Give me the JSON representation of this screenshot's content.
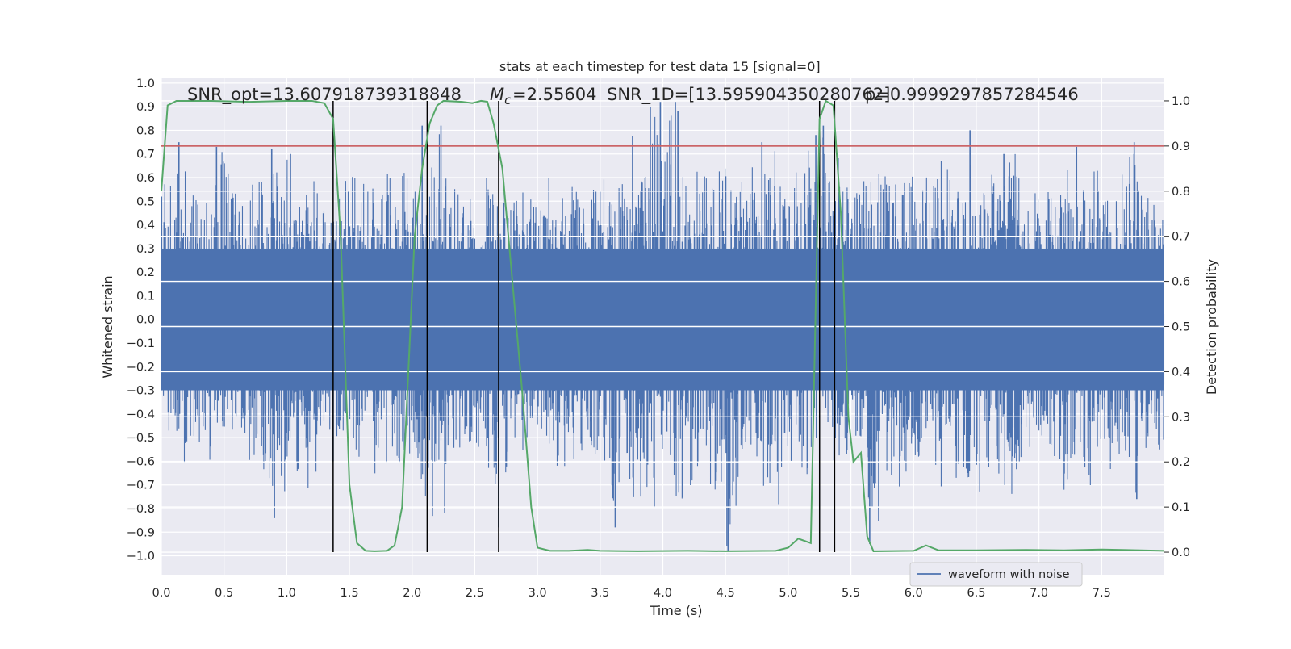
{
  "chart_data": {
    "type": "line",
    "title": "stats at each timestep for test data 15 [signal=0]",
    "xlabel": "Time (s)",
    "ylabel_left": "Whitened strain",
    "ylabel_right": "Detection probability",
    "xlim": [
      0.0,
      8.0
    ],
    "ylim_left": [
      -1.08,
      1.02
    ],
    "ylim_right": [
      -0.05,
      1.05
    ],
    "grid": true,
    "x_ticks": [
      "0.0",
      "0.5",
      "1.0",
      "1.5",
      "2.0",
      "2.5",
      "3.0",
      "3.5",
      "4.0",
      "4.5",
      "5.0",
      "5.5",
      "6.0",
      "6.5",
      "7.0",
      "7.5"
    ],
    "y_ticks_left": [
      "1.0",
      "0.9",
      "0.8",
      "0.7",
      "0.6",
      "0.5",
      "0.4",
      "0.3",
      "0.2",
      "0.1",
      "0.0",
      "−0.1",
      "−0.2",
      "−0.3",
      "−0.4",
      "−0.5",
      "−0.6",
      "−0.7",
      "−0.8",
      "−0.9",
      "−1.0"
    ],
    "y_ticks_right": [
      "1.0",
      "0.9",
      "0.8",
      "0.7",
      "0.6",
      "0.5",
      "0.4",
      "0.3",
      "0.2",
      "0.1",
      "0.0"
    ],
    "annotations": {
      "snr_opt": "SNR_opt=13.607918739318848",
      "mc_prefix": "=2.55604",
      "mc_suffix": "SNR_1D=[13.595904350280762]",
      "p_value": "p=0.9999297857284546"
    },
    "legend": {
      "label": "waveform with noise",
      "placement": "lower-right"
    },
    "threshold": 0.9,
    "detection_boundaries_s": [
      1.37,
      2.12,
      2.69,
      5.25,
      5.37
    ],
    "series": [
      {
        "name": "waveform with noise",
        "color": "#4c72b0",
        "envelope_points": [
          [
            0.0,
            0.62,
            -0.35
          ],
          [
            0.1,
            0.68,
            -0.55
          ],
          [
            0.2,
            0.62,
            -0.62
          ],
          [
            0.3,
            0.6,
            -0.55
          ],
          [
            0.4,
            0.6,
            -0.6
          ],
          [
            0.5,
            0.73,
            -0.6
          ],
          [
            0.6,
            0.6,
            -0.55
          ],
          [
            0.7,
            0.55,
            -0.78
          ],
          [
            0.8,
            0.65,
            -0.6
          ],
          [
            0.9,
            0.7,
            -0.85
          ],
          [
            1.0,
            0.68,
            -0.75
          ],
          [
            1.1,
            0.55,
            -0.62
          ],
          [
            1.2,
            0.65,
            -0.75
          ],
          [
            1.3,
            0.52,
            -0.6
          ],
          [
            1.4,
            0.6,
            -0.6
          ],
          [
            1.5,
            0.58,
            -0.65
          ],
          [
            1.6,
            0.7,
            -0.72
          ],
          [
            1.7,
            0.6,
            -0.8
          ],
          [
            1.8,
            0.65,
            -0.6
          ],
          [
            1.9,
            0.68,
            -0.72
          ],
          [
            2.0,
            0.55,
            -0.55
          ],
          [
            2.1,
            0.82,
            -0.85
          ],
          [
            2.2,
            0.82,
            -0.82
          ],
          [
            2.3,
            0.6,
            -0.75
          ],
          [
            2.4,
            0.62,
            -0.62
          ],
          [
            2.5,
            0.55,
            -0.6
          ],
          [
            2.6,
            0.6,
            -0.6
          ],
          [
            2.7,
            0.58,
            -0.88
          ],
          [
            2.8,
            0.55,
            -0.6
          ],
          [
            2.9,
            0.6,
            -0.65
          ],
          [
            3.0,
            0.6,
            -0.55
          ],
          [
            3.1,
            0.65,
            -0.6
          ],
          [
            3.2,
            0.6,
            -0.65
          ],
          [
            3.3,
            0.55,
            -0.62
          ],
          [
            3.4,
            0.55,
            -0.6
          ],
          [
            3.5,
            0.68,
            -0.65
          ],
          [
            3.6,
            0.6,
            -0.88
          ],
          [
            3.7,
            0.68,
            -0.72
          ],
          [
            3.8,
            0.85,
            -0.8
          ],
          [
            3.9,
            0.82,
            -0.85
          ],
          [
            4.0,
            0.92,
            -0.7
          ],
          [
            4.1,
            0.9,
            -0.8
          ],
          [
            4.2,
            0.65,
            -0.72
          ],
          [
            4.3,
            0.62,
            -0.7
          ],
          [
            4.4,
            0.68,
            -0.75
          ],
          [
            4.5,
            0.72,
            -0.98
          ],
          [
            4.6,
            0.6,
            -0.75
          ],
          [
            4.7,
            0.65,
            -0.72
          ],
          [
            4.8,
            0.6,
            -0.7
          ],
          [
            4.9,
            0.72,
            -0.8
          ],
          [
            5.0,
            0.6,
            -0.72
          ],
          [
            5.1,
            0.65,
            -0.75
          ],
          [
            5.2,
            0.78,
            -0.6
          ],
          [
            5.3,
            0.82,
            -0.65
          ],
          [
            5.4,
            0.72,
            -0.65
          ],
          [
            5.5,
            0.6,
            -0.6
          ],
          [
            5.6,
            0.62,
            -0.65
          ],
          [
            5.7,
            0.62,
            -0.95
          ],
          [
            5.8,
            0.6,
            -0.75
          ],
          [
            5.9,
            0.72,
            -0.7
          ],
          [
            6.0,
            0.6,
            -0.72
          ],
          [
            6.1,
            0.65,
            -0.7
          ],
          [
            6.2,
            0.72,
            -0.72
          ],
          [
            6.3,
            0.6,
            -0.65
          ],
          [
            6.4,
            0.62,
            -0.7
          ],
          [
            6.5,
            0.68,
            -0.72
          ],
          [
            6.6,
            0.6,
            -0.75
          ],
          [
            6.7,
            0.65,
            -0.7
          ],
          [
            6.8,
            0.72,
            -0.75
          ],
          [
            6.9,
            0.65,
            -0.75
          ],
          [
            7.0,
            0.68,
            -0.65
          ],
          [
            7.1,
            0.62,
            -0.72
          ],
          [
            7.2,
            0.6,
            -0.72
          ],
          [
            7.3,
            0.72,
            -0.7
          ],
          [
            7.4,
            0.68,
            -0.78
          ],
          [
            7.5,
            0.65,
            -0.65
          ],
          [
            7.6,
            0.6,
            -0.7
          ],
          [
            7.7,
            0.68,
            -0.62
          ],
          [
            7.8,
            0.75,
            -0.78
          ],
          [
            7.9,
            0.6,
            -0.55
          ],
          [
            8.0,
            0.6,
            -0.55
          ]
        ],
        "spikes": [
          [
            0.14,
            0.75
          ],
          [
            0.44,
            0.73
          ],
          [
            0.88,
            0.72
          ],
          [
            1.03,
            0.7
          ],
          [
            1.37,
            -0.6
          ],
          [
            2.08,
            0.82
          ],
          [
            2.23,
            0.82
          ],
          [
            2.26,
            -0.82
          ],
          [
            2.69,
            -0.88
          ],
          [
            3.62,
            -0.88
          ],
          [
            3.9,
            0.9
          ],
          [
            3.98,
            0.92
          ],
          [
            4.1,
            0.92
          ],
          [
            4.12,
            0.88
          ],
          [
            4.52,
            -0.98
          ],
          [
            4.79,
            0.75
          ],
          [
            5.22,
            0.78
          ],
          [
            5.28,
            0.82
          ],
          [
            5.65,
            -0.95
          ],
          [
            6.45,
            0.8
          ],
          [
            6.72,
            0.7
          ],
          [
            7.3,
            0.73
          ],
          [
            7.76,
            0.75
          ],
          [
            7.78,
            -0.76
          ]
        ]
      },
      {
        "name": "detection probability",
        "color": "#55a868",
        "axis": "right",
        "points": [
          [
            0.0,
            0.8
          ],
          [
            0.05,
            0.99
          ],
          [
            0.12,
            1.0
          ],
          [
            0.4,
            1.0
          ],
          [
            0.7,
            0.998
          ],
          [
            1.0,
            1.0
          ],
          [
            1.2,
            1.0
          ],
          [
            1.3,
            0.995
          ],
          [
            1.37,
            0.96
          ],
          [
            1.43,
            0.7
          ],
          [
            1.5,
            0.15
          ],
          [
            1.56,
            0.02
          ],
          [
            1.63,
            0.003
          ],
          [
            1.7,
            0.002
          ],
          [
            1.8,
            0.003
          ],
          [
            1.86,
            0.015
          ],
          [
            1.92,
            0.1
          ],
          [
            1.97,
            0.4
          ],
          [
            2.02,
            0.7
          ],
          [
            2.08,
            0.85
          ],
          [
            2.14,
            0.95
          ],
          [
            2.2,
            0.99
          ],
          [
            2.25,
            1.0
          ],
          [
            2.4,
            0.998
          ],
          [
            2.48,
            0.995
          ],
          [
            2.55,
            1.0
          ],
          [
            2.6,
            0.998
          ],
          [
            2.65,
            0.95
          ],
          [
            2.72,
            0.85
          ],
          [
            2.8,
            0.6
          ],
          [
            2.88,
            0.35
          ],
          [
            2.95,
            0.1
          ],
          [
            3.0,
            0.01
          ],
          [
            3.1,
            0.003
          ],
          [
            3.25,
            0.003
          ],
          [
            3.4,
            0.005
          ],
          [
            3.5,
            0.003
          ],
          [
            3.8,
            0.002
          ],
          [
            4.2,
            0.003
          ],
          [
            4.5,
            0.002
          ],
          [
            4.9,
            0.003
          ],
          [
            5.0,
            0.01
          ],
          [
            5.08,
            0.03
          ],
          [
            5.18,
            0.02
          ],
          [
            5.25,
            0.96
          ],
          [
            5.3,
            1.0
          ],
          [
            5.36,
            0.99
          ],
          [
            5.42,
            0.75
          ],
          [
            5.48,
            0.3
          ],
          [
            5.52,
            0.2
          ],
          [
            5.58,
            0.22
          ],
          [
            5.63,
            0.035
          ],
          [
            5.68,
            0.002
          ],
          [
            6.0,
            0.003
          ],
          [
            6.1,
            0.015
          ],
          [
            6.2,
            0.004
          ],
          [
            6.5,
            0.004
          ],
          [
            6.9,
            0.005
          ],
          [
            7.2,
            0.004
          ],
          [
            7.5,
            0.006
          ],
          [
            8.0,
            0.003
          ]
        ]
      }
    ]
  }
}
